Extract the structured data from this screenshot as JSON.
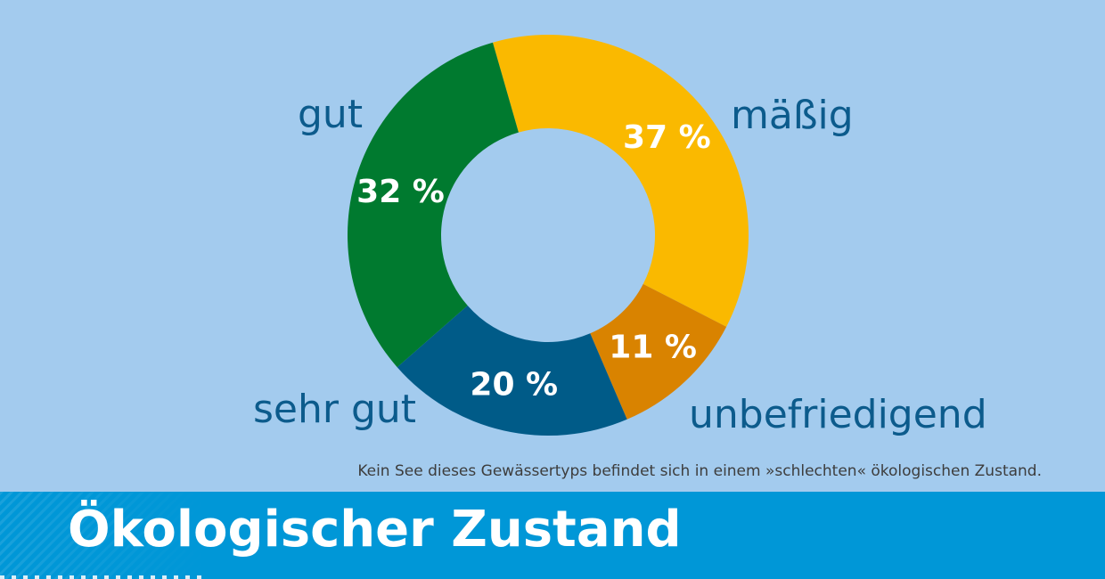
{
  "chart_data": {
    "type": "pie",
    "variant": "donut",
    "categories": [
      "mäßig",
      "unbefriedigend",
      "sehr gut",
      "gut"
    ],
    "values": [
      37,
      11,
      20,
      32
    ],
    "value_labels": [
      "37 %",
      "11 %",
      "20 %",
      "32 %"
    ],
    "colors": [
      "#fab900",
      "#d98300",
      "#005b88",
      "#007a2f"
    ],
    "label_color": "#0c5b8c",
    "title": "Ökologischer Zustand"
  },
  "footnote": "Kein See dieses Gewässertyps befindet sich in einem »schlechten« ökologischen Zustand.",
  "colors": {
    "background": "#a3cbee",
    "title_band": "#0097d7"
  }
}
